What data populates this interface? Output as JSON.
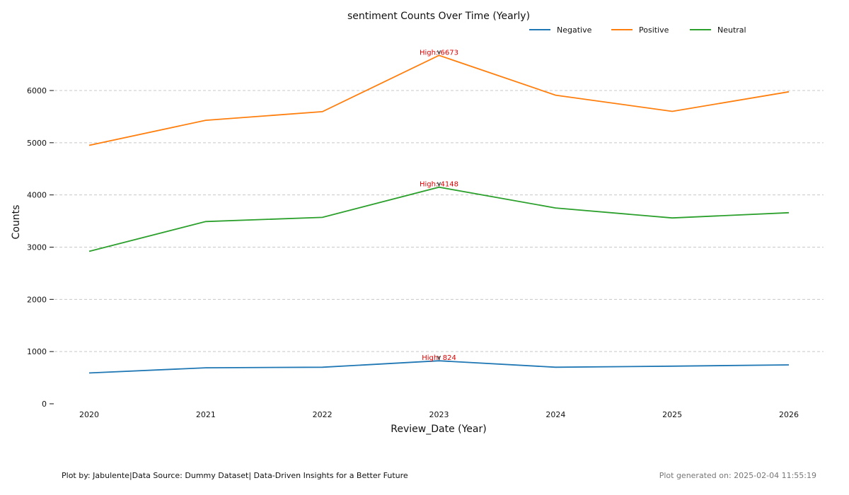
{
  "chart_data": {
    "type": "line",
    "title": "sentiment Counts Over Time (Yearly)",
    "xlabel": "Review_Date (Year)",
    "ylabel": "Counts",
    "x": [
      "2020",
      "2021",
      "2022",
      "2023",
      "2024",
      "2025",
      "2026"
    ],
    "ylim": [
      0,
      7000
    ],
    "yticks": [
      0,
      1000,
      2000,
      3000,
      4000,
      5000,
      6000
    ],
    "grid": "horizontal-dashed",
    "legend_position": "top-right",
    "series": [
      {
        "name": "Negative",
        "color": "#1f77b4",
        "values": [
          590,
          690,
          700,
          824,
          700,
          720,
          745
        ]
      },
      {
        "name": "Positive",
        "color": "#ff7f0e",
        "values": [
          4950,
          5430,
          5595,
          6673,
          5910,
          5600,
          5975
        ]
      },
      {
        "name": "Neutral",
        "color": "#2ca02c",
        "values": [
          2920,
          3490,
          3570,
          4148,
          3750,
          3560,
          3660
        ]
      }
    ],
    "annotations": [
      {
        "x": "2023",
        "y": 6673,
        "text": "High: 6673"
      },
      {
        "x": "2023",
        "y": 4148,
        "text": "High: 4148"
      },
      {
        "x": "2023",
        "y": 824,
        "text": "High: 824"
      }
    ]
  },
  "footer": {
    "left": "Plot by: Jabulente|Data Source: Dummy Dataset| Data-Driven Insights for a Better Future",
    "right": "Plot generated on: 2025-02-04 11:55:19"
  }
}
